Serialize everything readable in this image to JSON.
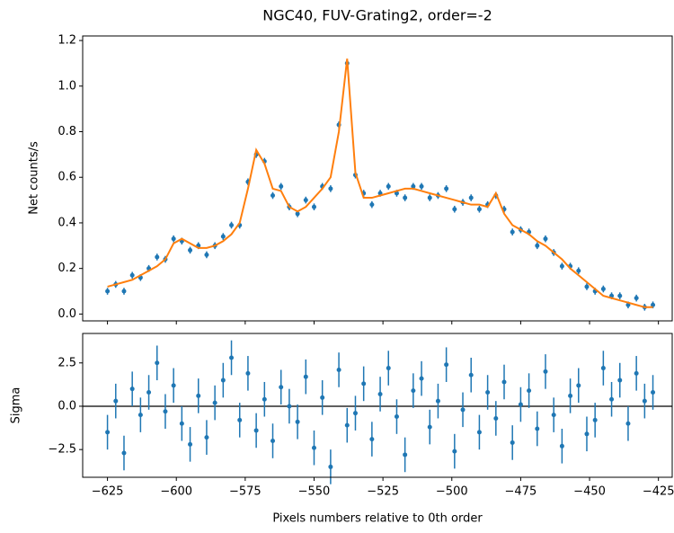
{
  "chart_data": [
    {
      "type": "errorbar",
      "title": "NGC40, FUV-Grating2, order=-2",
      "ylabel": "Net counts/s",
      "x": [
        -625,
        -622,
        -619,
        -616,
        -613,
        -610,
        -607,
        -604,
        -601,
        -598,
        -595,
        -592,
        -589,
        -586,
        -583,
        -580,
        -577,
        -574,
        -571,
        -568,
        -565,
        -562,
        -559,
        -556,
        -553,
        -550,
        -547,
        -544,
        -541,
        -538,
        -535,
        -532,
        -529,
        -526,
        -523,
        -520,
        -517,
        -514,
        -511,
        -508,
        -505,
        -502,
        -499,
        -496,
        -493,
        -490,
        -487,
        -484,
        -481,
        -478,
        -475,
        -472,
        -469,
        -466,
        -463,
        -460,
        -457,
        -454,
        -451,
        -448,
        -445,
        -442,
        -439,
        -436,
        -433,
        -430,
        -427
      ],
      "values": [
        0.1,
        0.13,
        0.1,
        0.17,
        0.16,
        0.2,
        0.25,
        0.24,
        0.33,
        0.32,
        0.28,
        0.3,
        0.26,
        0.3,
        0.34,
        0.39,
        0.39,
        0.58,
        0.7,
        0.67,
        0.52,
        0.56,
        0.47,
        0.44,
        0.5,
        0.47,
        0.56,
        0.55,
        0.83,
        1.1,
        0.61,
        0.53,
        0.48,
        0.53,
        0.56,
        0.53,
        0.51,
        0.56,
        0.56,
        0.51,
        0.52,
        0.55,
        0.46,
        0.49,
        0.51,
        0.46,
        0.48,
        0.52,
        0.46,
        0.36,
        0.37,
        0.36,
        0.3,
        0.33,
        0.27,
        0.21,
        0.21,
        0.19,
        0.12,
        0.1,
        0.11,
        0.08,
        0.08,
        0.04,
        0.07,
        0.03,
        0.04
      ],
      "yerr": 0.015,
      "color": "#1f77b4",
      "model": {
        "color": "#ff7f0e",
        "values": [
          0.12,
          0.13,
          0.14,
          0.15,
          0.17,
          0.19,
          0.21,
          0.24,
          0.31,
          0.33,
          0.31,
          0.29,
          0.29,
          0.3,
          0.32,
          0.35,
          0.4,
          0.55,
          0.72,
          0.66,
          0.55,
          0.54,
          0.47,
          0.45,
          0.47,
          0.51,
          0.55,
          0.6,
          0.8,
          1.12,
          0.62,
          0.51,
          0.51,
          0.52,
          0.53,
          0.54,
          0.55,
          0.55,
          0.54,
          0.53,
          0.52,
          0.51,
          0.5,
          0.49,
          0.48,
          0.48,
          0.47,
          0.53,
          0.44,
          0.39,
          0.37,
          0.35,
          0.32,
          0.3,
          0.27,
          0.24,
          0.2,
          0.17,
          0.14,
          0.11,
          0.08,
          0.07,
          0.06,
          0.05,
          0.04,
          0.03,
          0.03
        ]
      },
      "xlim": [
        -634,
        -420
      ],
      "ylim": [
        -0.03,
        1.22
      ],
      "xticks": [
        -625,
        -600,
        -575,
        -550,
        -525,
        -500,
        -475,
        -450,
        -425
      ],
      "yticks": [
        {
          "value": 0,
          "label": "0.0"
        },
        {
          "value": 0.2,
          "label": "0.2"
        },
        {
          "value": 0.4,
          "label": "0.4"
        },
        {
          "value": 0.6,
          "label": "0.6"
        },
        {
          "value": 0.8,
          "label": "0.8"
        },
        {
          "value": 1.0,
          "label": "1.0"
        },
        {
          "value": 1.2,
          "label": "1.2"
        }
      ]
    },
    {
      "type": "errorbar",
      "xlabel": "Pixels numbers relative to 0th order",
      "ylabel": "Sigma",
      "x": [
        -625,
        -622,
        -619,
        -616,
        -613,
        -610,
        -607,
        -604,
        -601,
        -598,
        -595,
        -592,
        -589,
        -586,
        -583,
        -580,
        -577,
        -574,
        -571,
        -568,
        -565,
        -562,
        -559,
        -556,
        -553,
        -550,
        -547,
        -544,
        -541,
        -538,
        -535,
        -532,
        -529,
        -526,
        -523,
        -520,
        -517,
        -514,
        -511,
        -508,
        -505,
        -502,
        -499,
        -496,
        -493,
        -490,
        -487,
        -484,
        -481,
        -478,
        -475,
        -472,
        -469,
        -466,
        -463,
        -460,
        -457,
        -454,
        -451,
        -448,
        -445,
        -442,
        -439,
        -436,
        -433,
        -430,
        -427
      ],
      "values": [
        -1.5,
        0.3,
        -2.7,
        1.0,
        -0.5,
        0.8,
        2.5,
        -0.3,
        1.2,
        -1.0,
        -2.2,
        0.6,
        -1.8,
        0.2,
        1.5,
        2.8,
        -0.8,
        1.9,
        -1.4,
        0.4,
        -2.0,
        1.1,
        0.0,
        -0.9,
        1.7,
        -2.4,
        0.5,
        -3.5,
        2.1,
        -1.1,
        -0.4,
        1.3,
        -1.9,
        0.7,
        2.2,
        -0.6,
        -2.8,
        0.9,
        1.6,
        -1.2,
        0.3,
        2.4,
        -2.6,
        -0.2,
        1.8,
        -1.5,
        0.8,
        -0.7,
        1.4,
        -2.1,
        0.1,
        0.9,
        -1.3,
        2.0,
        -0.5,
        -2.3,
        0.6,
        1.2,
        -1.6,
        -0.8,
        2.2,
        0.4,
        1.5,
        -1.0,
        1.9,
        0.3,
        0.8
      ],
      "yerr": 1,
      "color": "#1f77b4",
      "hline": 0,
      "xlim": [
        -634,
        -420
      ],
      "ylim": [
        -4.1,
        4.2
      ],
      "xticks": [
        {
          "value": -625,
          "label": "−625"
        },
        {
          "value": -600,
          "label": "−600"
        },
        {
          "value": -575,
          "label": "−575"
        },
        {
          "value": -550,
          "label": "−550"
        },
        {
          "value": -525,
          "label": "−525"
        },
        {
          "value": -500,
          "label": "−500"
        },
        {
          "value": -475,
          "label": "−475"
        },
        {
          "value": -450,
          "label": "−450"
        },
        {
          "value": -425,
          "label": "−425"
        }
      ],
      "yticks": [
        {
          "value": -2.5,
          "label": "−2.5"
        },
        {
          "value": 0,
          "label": "0.0"
        },
        2.5
      ]
    }
  ]
}
